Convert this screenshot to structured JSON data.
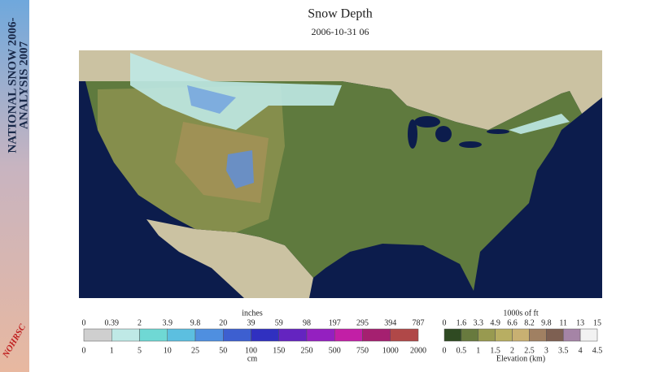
{
  "banner": {
    "lines": [
      "NATIONAL SNOW 2006-",
      "ANALYSIS 2007"
    ],
    "logo": "NOHRSC"
  },
  "header": {
    "title": "Snow Depth",
    "date": "2006-10-31 06"
  },
  "snow_legend": {
    "unit_top": "inches",
    "unit_bottom": "cm",
    "top_labels": [
      "0",
      "0.39",
      "2",
      "3.9",
      "9.8",
      "20",
      "39",
      "59",
      "98",
      "197",
      "295",
      "394",
      "787"
    ],
    "bottom_labels": [
      "0",
      "1",
      "5",
      "10",
      "25",
      "50",
      "100",
      "150",
      "250",
      "500",
      "750",
      "1000",
      "2000"
    ],
    "colors": [
      "#cfcfcf",
      "#bfe9e6",
      "#6fd8d4",
      "#5cbfe0",
      "#4f8fe0",
      "#3d5fd0",
      "#3030c0",
      "#6424c0",
      "#9420c0",
      "#c21fa6",
      "#a52070",
      "#b04848"
    ]
  },
  "elevation_legend": {
    "unit_top": "1000s of ft",
    "unit_bottom": "Elevation (km)",
    "top_labels": [
      "0",
      "1.6",
      "3.3",
      "4.9",
      "6.6",
      "8.2",
      "9.8",
      "11",
      "13",
      "15"
    ],
    "bottom_labels": [
      "0",
      "0.5",
      "1",
      "1.5",
      "2",
      "2.5",
      "3",
      "3.5",
      "4",
      "4.5"
    ],
    "colors": [
      "#2f4a22",
      "#687a3e",
      "#989a50",
      "#b8ae62",
      "#c8b072",
      "#a08062",
      "#7e6052",
      "#a584a6",
      "#f2f2f2"
    ]
  }
}
